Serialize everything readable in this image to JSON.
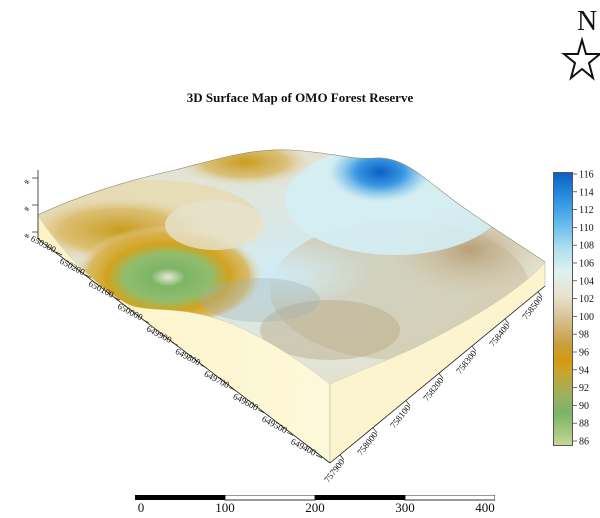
{
  "title": "3D Surface Map of OMO Forest Reserve",
  "north_arrow": {
    "letter": "N"
  },
  "legend": {
    "ticks": [
      "116",
      "114",
      "112",
      "110",
      "108",
      "106",
      "104",
      "102",
      "100",
      "98",
      "96",
      "94",
      "92",
      "90",
      "88",
      "86"
    ]
  },
  "y_axis_ticks": [
    "650300",
    "650200",
    "650100",
    "650000",
    "649900",
    "649800",
    "649700",
    "649600",
    "649500",
    "649400"
  ],
  "x_axis_ticks": [
    "757900",
    "758000",
    "758100",
    "758200",
    "758300",
    "758400",
    "758500"
  ],
  "z_axis_ticks": [
    "#",
    "#",
    "#"
  ],
  "scale_bar": {
    "labels": [
      "0",
      "100",
      "200",
      "300",
      "400"
    ]
  },
  "colors": {
    "high": "#0a5fc4",
    "mid_high": "#a9dcef",
    "mid": "#e9e3cf",
    "mid_low": "#d39a10",
    "low": "#79b466",
    "base": "#fcf6cf"
  }
}
